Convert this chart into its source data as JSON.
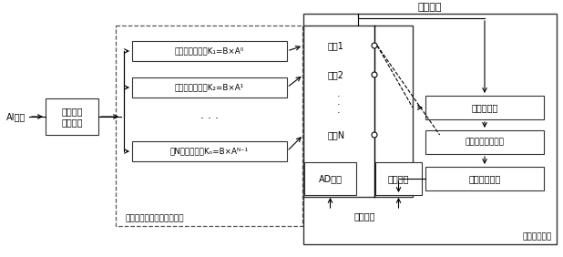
{
  "fig_width": 6.18,
  "fig_height": 2.82,
  "dpi": 100,
  "bg_color": "#ffffff",
  "text_color": "#000000",
  "title_top": "转换完成",
  "label_bottom_left": "并行多路模拟放大调理电路",
  "label_bottom_right": "数字控制电路",
  "label_timing": "定时触发",
  "ai_label": "AI输入",
  "box1_text": "初级模拟\n放大调理",
  "amp1_text": "第一路放大倍数K₁=B×A⁰",
  "amp2_text": "第二路放大倍数K₂=B×A¹",
  "ampN_text": "第N路放大倍数Kₙ=B×Aᴺ⁻¹",
  "ch1_text": "通道1",
  "ch2_text": "通道2",
  "chN_text": "通道N",
  "ad_text": "AD转换",
  "ch_sel_text": "通道选择",
  "read_text": "读取采样值",
  "analyze_text": "采样值分析和比较",
  "preset_text": "采样通道预置"
}
